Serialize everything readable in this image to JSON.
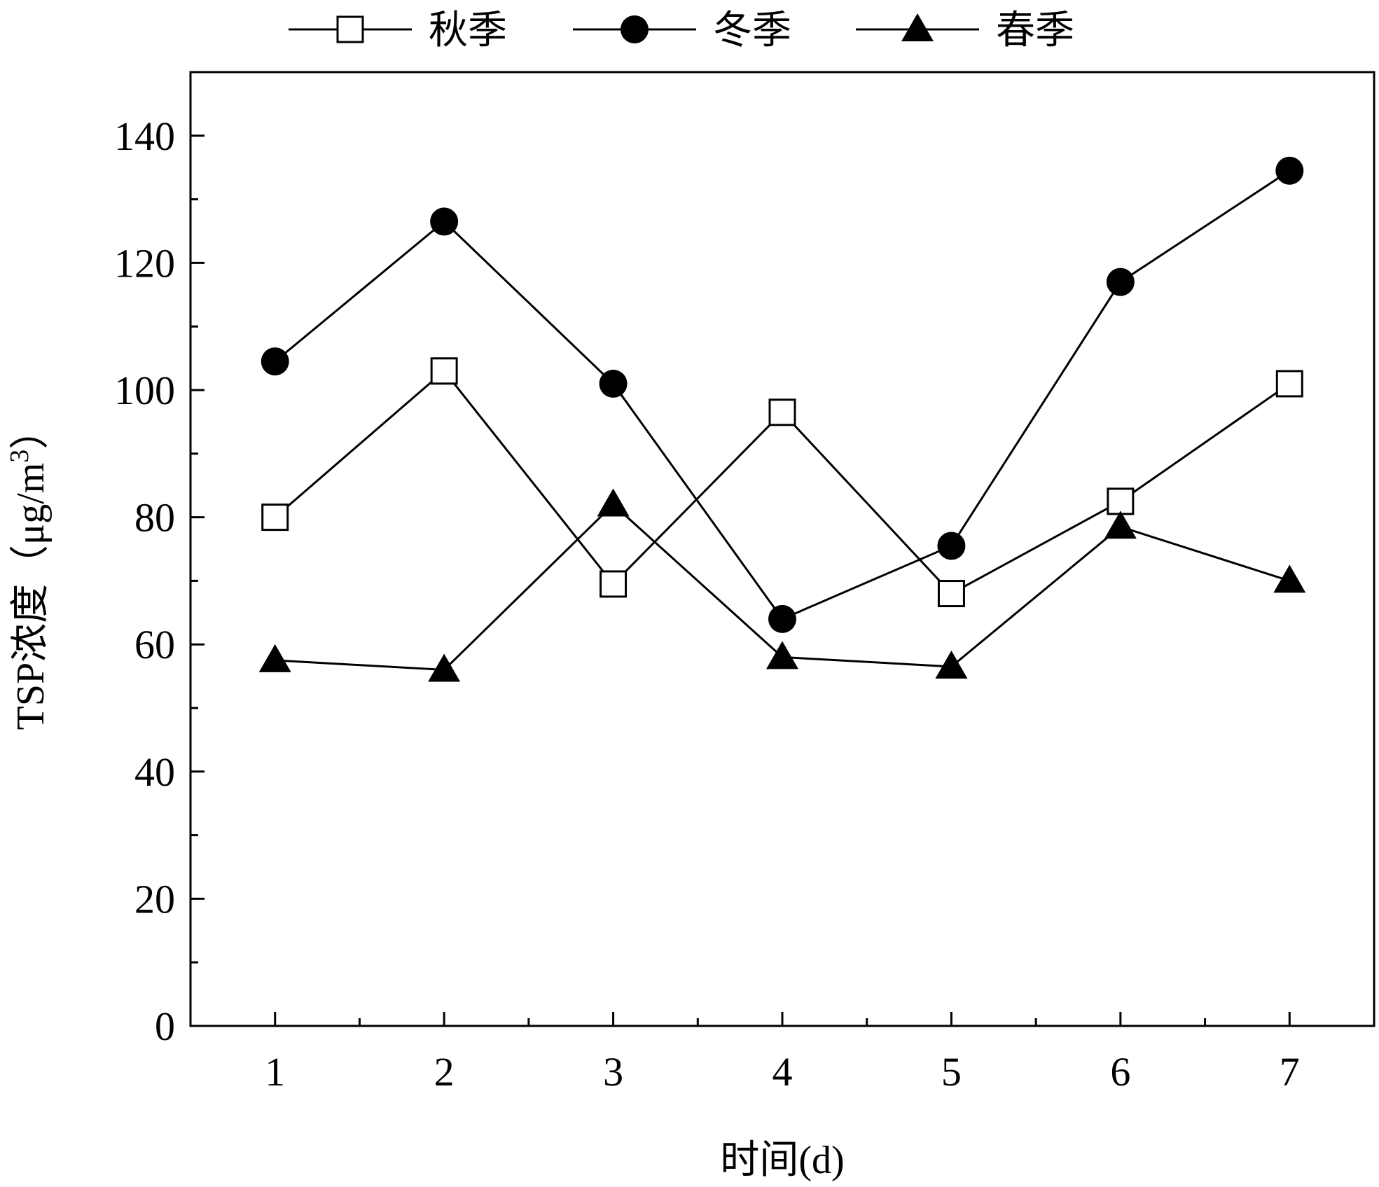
{
  "chart_data": {
    "type": "line",
    "title": "",
    "xlabel": "时间(d)",
    "ylabel": {
      "main": "TSP浓度（μg/m",
      "sup": "3",
      "close": "）"
    },
    "x": [
      1,
      2,
      3,
      4,
      5,
      6,
      7
    ],
    "xlim": [
      0.5,
      7.5
    ],
    "ylim": [
      0,
      150
    ],
    "x_ticks": [
      1,
      2,
      3,
      4,
      5,
      6,
      7
    ],
    "y_ticks": [
      0,
      20,
      40,
      60,
      80,
      100,
      120,
      140
    ],
    "grid": false,
    "legend_position": "top",
    "series": [
      {
        "name": "秋季",
        "marker": "open-square",
        "color": "#000000",
        "values": [
          80,
          103,
          69.5,
          96.5,
          68,
          82.5,
          101
        ]
      },
      {
        "name": "冬季",
        "marker": "filled-circle",
        "color": "#000000",
        "values": [
          104.5,
          126.5,
          101,
          64,
          75.5,
          117,
          134.5
        ]
      },
      {
        "name": "春季",
        "marker": "filled-triangle",
        "color": "#000000",
        "values": [
          57.5,
          56,
          82,
          58,
          56.5,
          78.5,
          70
        ]
      }
    ]
  }
}
